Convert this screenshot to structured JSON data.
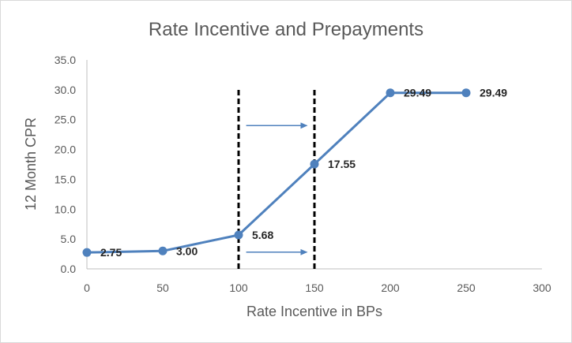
{
  "chart_data": {
    "type": "line",
    "title": "Rate Incentive and Prepayments",
    "xlabel": "Rate Incentive in BPs",
    "ylabel": "12 Month CPR",
    "xlim": [
      0,
      300
    ],
    "ylim": [
      0,
      35
    ],
    "x_ticks": [
      "0",
      "50",
      "100",
      "150",
      "200",
      "250",
      "300"
    ],
    "x_tick_values": [
      0,
      50,
      100,
      150,
      200,
      250,
      300
    ],
    "y_ticks": [
      "0.0",
      "5.0",
      "10.0",
      "15.0",
      "20.0",
      "25.0",
      "30.0",
      "35.0"
    ],
    "y_tick_values": [
      0,
      5,
      10,
      15,
      20,
      25,
      30,
      35
    ],
    "grid": false,
    "series": [
      {
        "name": "12 Month CPR",
        "color": "#4f81bd",
        "x": [
          0,
          50,
          100,
          150,
          200,
          250
        ],
        "values": [
          2.75,
          3.0,
          5.68,
          17.55,
          29.49,
          29.49
        ],
        "labels": [
          "2.75",
          "3.00",
          "5.68",
          "17.55",
          "29.49",
          "29.49"
        ]
      }
    ],
    "annotations": {
      "vertical_lines": [
        {
          "x": 100,
          "style": "dashed",
          "color": "#000000"
        },
        {
          "x": 150,
          "style": "dashed",
          "color": "#000000"
        }
      ],
      "arrows": [
        {
          "x_from": 105,
          "x_to": 145,
          "y": 24.0,
          "color": "#4f81bd"
        },
        {
          "x_from": 105,
          "x_to": 145,
          "y": 2.8,
          "color": "#4f81bd"
        }
      ]
    }
  }
}
